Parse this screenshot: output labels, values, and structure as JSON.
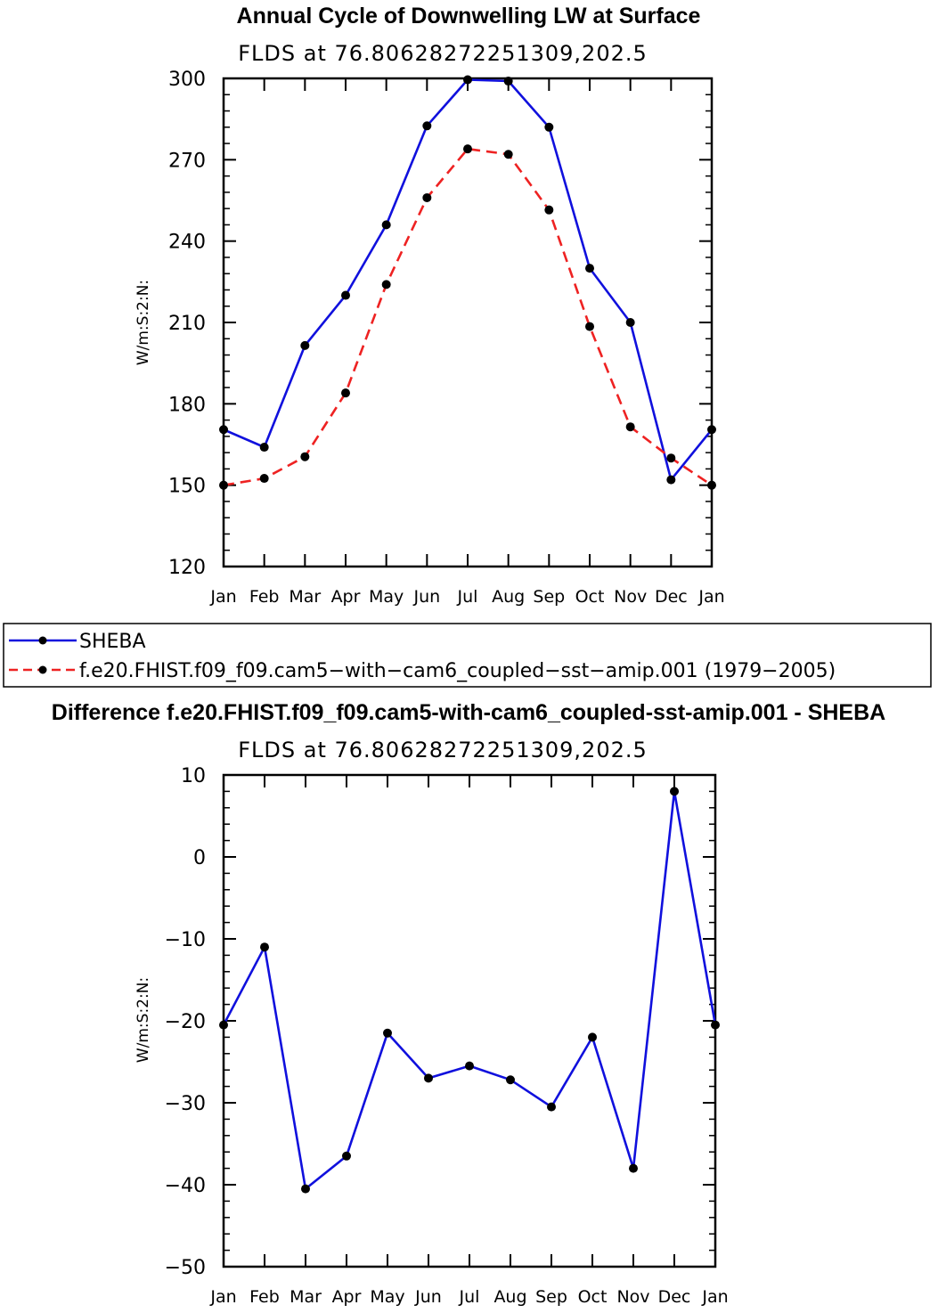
{
  "chart_data": [
    {
      "type": "line",
      "title": "Annual Cycle of Downwelling LW at Surface",
      "subtitle": "FLDS at 76.80628272251309,202.5",
      "xlabel": "",
      "ylabel": "W/m:S:2:N:",
      "categories": [
        "Jan",
        "Feb",
        "Mar",
        "Apr",
        "May",
        "Jun",
        "Jul",
        "Aug",
        "Sep",
        "Oct",
        "Nov",
        "Dec",
        "Jan"
      ],
      "ylim": [
        120,
        300
      ],
      "yticks": [
        120,
        150,
        180,
        210,
        240,
        270,
        300
      ],
      "series": [
        {
          "name": "SHEBA",
          "color": "#1010dd",
          "dash": "solid",
          "values": [
            170.5,
            164,
            201.5,
            220,
            246,
            282.5,
            299.5,
            299,
            282,
            230,
            210,
            152,
            170.5
          ]
        },
        {
          "name": "f.e20.FHIST.f09_f09.cam5-with-cam6_coupled-sst-amip.001 (1979-2005)",
          "color": "#ee2222",
          "dash": "dashed",
          "values": [
            150,
            152.5,
            160.5,
            184,
            224,
            256,
            274,
            272,
            251.5,
            208.5,
            171.5,
            160,
            150
          ]
        }
      ]
    },
    {
      "type": "line",
      "title": "Difference f.e20.FHIST.f09_f09.cam5-with-cam6_coupled-sst-amip.001 - SHEBA",
      "subtitle": "FLDS at 76.80628272251309,202.5",
      "xlabel": "",
      "ylabel": "W/m:S:2:N:",
      "categories": [
        "Jan",
        "Feb",
        "Mar",
        "Apr",
        "May",
        "Jun",
        "Jul",
        "Aug",
        "Sep",
        "Oct",
        "Nov",
        "Dec",
        "Jan"
      ],
      "ylim": [
        -50,
        10
      ],
      "yticks": [
        -50,
        -40,
        -30,
        -20,
        -10,
        0,
        10
      ],
      "series": [
        {
          "name": "Difference",
          "color": "#1010dd",
          "dash": "solid",
          "values": [
            -20.5,
            -11,
            -40.5,
            -36.5,
            -21.5,
            -27,
            -25.5,
            -27.2,
            -30.5,
            -22,
            -38,
            8,
            -20.5
          ]
        }
      ]
    }
  ],
  "legend": {
    "items": [
      {
        "label": "SHEBA",
        "color": "#1010dd",
        "dash": "solid"
      },
      {
        "label": "f.e20.FHIST.f09_f09.cam5−with−cam6_coupled−sst−amip.001 (1979−2005)",
        "color": "#ee2222",
        "dash": "dashed"
      }
    ]
  }
}
